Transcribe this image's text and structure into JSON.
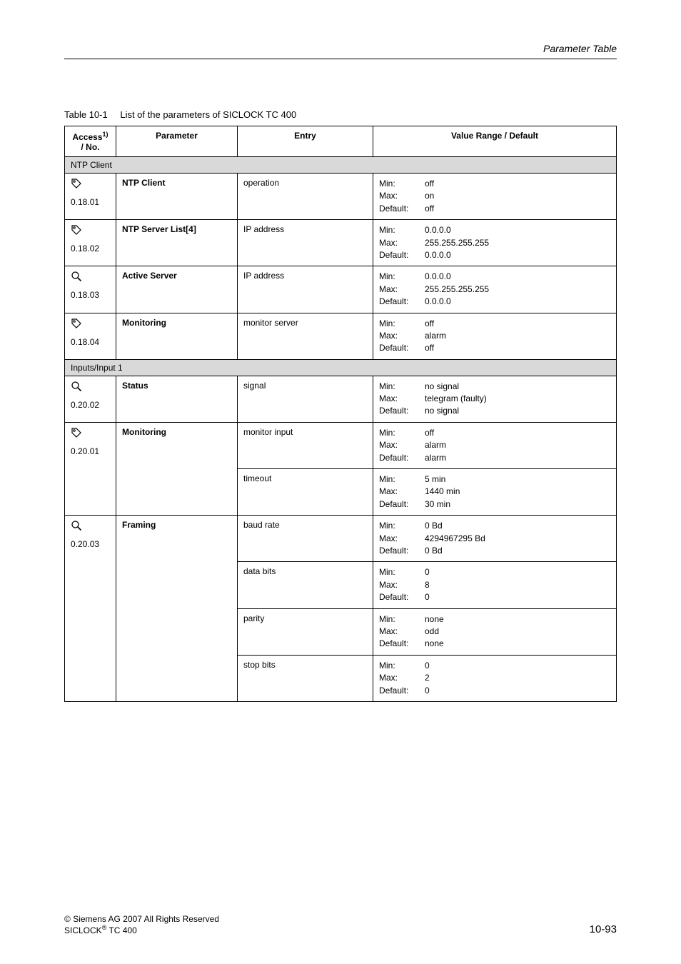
{
  "header": {
    "section_title": "Parameter Table"
  },
  "caption": {
    "label": "Table 10-1",
    "text": "List of the parameters of SICLOCK TC 400"
  },
  "columns": {
    "access": {
      "line1": "Access",
      "sup": "1)",
      "line2": "/ No."
    },
    "parameter": "Parameter",
    "entry": "Entry",
    "value": "Value Range / Default"
  },
  "vr_labels": {
    "min": "Min:",
    "max": "Max:",
    "def": "Default:"
  },
  "sections": [
    {
      "title": "NTP Client",
      "rows": [
        {
          "icon": "tag",
          "no": "0.18.01",
          "parameter": "NTP Client",
          "entries": [
            {
              "entry": "operation",
              "min": "off",
              "max": "on",
              "def": "off"
            }
          ]
        },
        {
          "icon": "tag",
          "no": "0.18.02",
          "parameter": "NTP Server List[4]",
          "entries": [
            {
              "entry": "IP address",
              "min": "0.0.0.0",
              "max": "255.255.255.255",
              "def": "0.0.0.0"
            }
          ]
        },
        {
          "icon": "zoom",
          "no": "0.18.03",
          "parameter": "Active Server",
          "entries": [
            {
              "entry": "IP address",
              "min": "0.0.0.0",
              "max": "255.255.255.255",
              "def": "0.0.0.0"
            }
          ]
        },
        {
          "icon": "tag",
          "no": "0.18.04",
          "parameter": "Monitoring",
          "entries": [
            {
              "entry": "monitor server",
              "min": "off",
              "max": "alarm",
              "def": "off"
            }
          ]
        }
      ]
    },
    {
      "title": "Inputs/Input 1",
      "rows": [
        {
          "icon": "zoom",
          "no": "0.20.02",
          "parameter": "Status",
          "entries": [
            {
              "entry": "signal",
              "min": "no signal",
              "max": "telegram (faulty)",
              "def": "no signal"
            }
          ]
        },
        {
          "icon": "tag",
          "no": "0.20.01",
          "parameter": "Monitoring",
          "entries": [
            {
              "entry": "monitor input",
              "min": "off",
              "max": "alarm",
              "def": "alarm"
            },
            {
              "entry": "timeout",
              "min": "5 min",
              "max": "1440 min",
              "def": "30 min"
            }
          ]
        },
        {
          "icon": "zoom",
          "no": "0.20.03",
          "parameter": "Framing",
          "entries": [
            {
              "entry": "baud rate",
              "min": "0 Bd",
              "max": "4294967295 Bd",
              "def": "0 Bd"
            },
            {
              "entry": "data bits",
              "min": "0",
              "max": "8",
              "def": "0"
            },
            {
              "entry": "parity",
              "min": "none",
              "max": "odd",
              "def": "none"
            },
            {
              "entry": "stop bits",
              "min": "0",
              "max": "2",
              "def": "0"
            }
          ]
        }
      ]
    }
  ],
  "footer": {
    "copyright_line1_prefix": "© ",
    "copyright_line1": "Siemens AG 2007 All Rights Reserved",
    "copyright_line2_pre": " SICLOCK",
    "copyright_line2_sup": "®",
    "copyright_line2_post": " TC 400",
    "page_no": "10-93"
  },
  "icons": {
    "tag_title": "tag-icon",
    "zoom_title": "magnifier-icon"
  },
  "colors": {
    "section_bg": "#d9d9d9",
    "border": "#000000",
    "text": "#000000",
    "page_bg": "#ffffff"
  }
}
